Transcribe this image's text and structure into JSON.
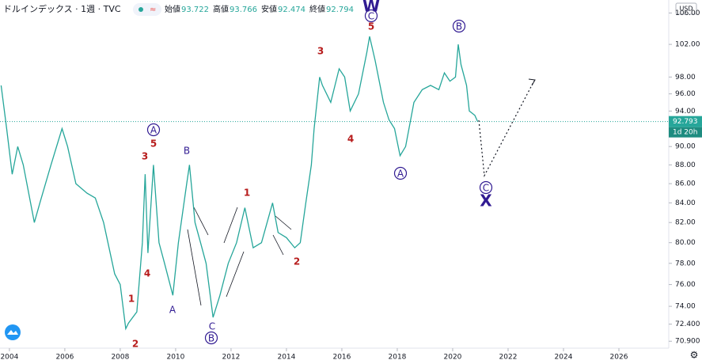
{
  "chart_data": {
    "type": "line",
    "title": "ドルインデックス · 1週 · TVC",
    "ohlc": [
      {
        "label": "始値",
        "value": 93.722
      },
      {
        "label": "高値",
        "value": 93.766
      },
      {
        "label": "安値",
        "value": 92.474
      },
      {
        "label": "終値",
        "value": 92.794
      }
    ],
    "currency": "USD",
    "last_price": 92.793,
    "countdown": "1d 20h",
    "log_scale": true,
    "grid": false,
    "xlim": [
      2003.66,
      2027.8
    ],
    "xticks": [
      2004,
      2006,
      2008,
      2010,
      2012,
      2014,
      2016,
      2018,
      2020,
      2022,
      2024,
      2026
    ],
    "ylim": [
      70.3,
      107.7
    ],
    "yticks": [
      {
        "value": 106,
        "label": "106.00"
      },
      {
        "value": 102,
        "label": "102.00"
      },
      {
        "value": 98,
        "label": "98.00"
      },
      {
        "value": 96,
        "label": "96.00"
      },
      {
        "value": 94,
        "label": "94.00"
      },
      {
        "value": 90,
        "label": "90.00"
      },
      {
        "value": 88,
        "label": "88.00"
      },
      {
        "value": 86,
        "label": "86.00"
      },
      {
        "value": 84,
        "label": "84.00"
      },
      {
        "value": 82,
        "label": "82.00"
      },
      {
        "value": 80,
        "label": "80.00"
      },
      {
        "value": 78,
        "label": "78.00"
      },
      {
        "value": 76,
        "label": "76.00"
      },
      {
        "value": 74,
        "label": "74.00"
      },
      {
        "value": 72.4,
        "label": "72.400"
      },
      {
        "value": 70.9,
        "label": "70.900"
      }
    ],
    "series": [
      {
        "name": "DXY",
        "color": "#26a69a",
        "x": [
          2003.7,
          2003.9,
          2004.1,
          2004.3,
          2004.5,
          2004.9,
          2005.1,
          2005.5,
          2005.9,
          2006.1,
          2006.4,
          2006.8,
          2007.1,
          2007.4,
          2007.8,
          2008.0,
          2008.2,
          2008.3,
          2008.6,
          2008.8,
          2008.9,
          2009.0,
          2009.2,
          2009.4,
          2009.6,
          2009.9,
          2010.1,
          2010.4,
          2010.5,
          2010.7,
          2010.9,
          2011.1,
          2011.35,
          2011.6,
          2011.9,
          2012.2,
          2012.5,
          2012.8,
          2013.1,
          2013.5,
          2013.7,
          2014.0,
          2014.3,
          2014.5,
          2014.7,
          2014.9,
          2015.0,
          2015.2,
          2015.3,
          2015.6,
          2015.9,
          2016.1,
          2016.3,
          2016.6,
          2016.9,
          2017.0,
          2017.2,
          2017.5,
          2017.7,
          2017.9,
          2018.1,
          2018.3,
          2018.6,
          2018.9,
          2019.2,
          2019.5,
          2019.7,
          2019.9,
          2020.1,
          2020.2,
          2020.3,
          2020.5,
          2020.6,
          2020.8,
          2020.9
        ],
        "values": [
          97,
          92,
          87,
          90,
          88,
          82,
          84,
          88,
          92,
          90,
          86,
          85,
          84.5,
          82,
          77,
          76,
          72,
          72.5,
          73.5,
          80,
          87,
          79,
          88,
          80,
          78,
          75,
          80,
          86,
          88,
          82,
          80,
          78,
          73,
          75,
          78,
          80,
          83.5,
          79.5,
          80,
          84,
          81,
          80.5,
          79.5,
          80,
          84,
          88,
          92,
          98,
          97,
          95,
          99,
          98,
          94,
          96,
          101,
          103,
          100,
          95,
          93,
          92,
          89,
          90,
          95,
          96.5,
          97,
          96.5,
          98.5,
          97.5,
          98,
          102,
          99.5,
          97,
          94,
          93.5,
          92.8
        ]
      }
    ],
    "annotations": [
      "W",
      "C",
      "5",
      "3",
      "4",
      "A",
      "B",
      "C",
      "X",
      "A",
      "5",
      "3",
      "4",
      "1",
      "2",
      "A",
      "B",
      "C",
      "B",
      "1",
      "2"
    ]
  }
}
